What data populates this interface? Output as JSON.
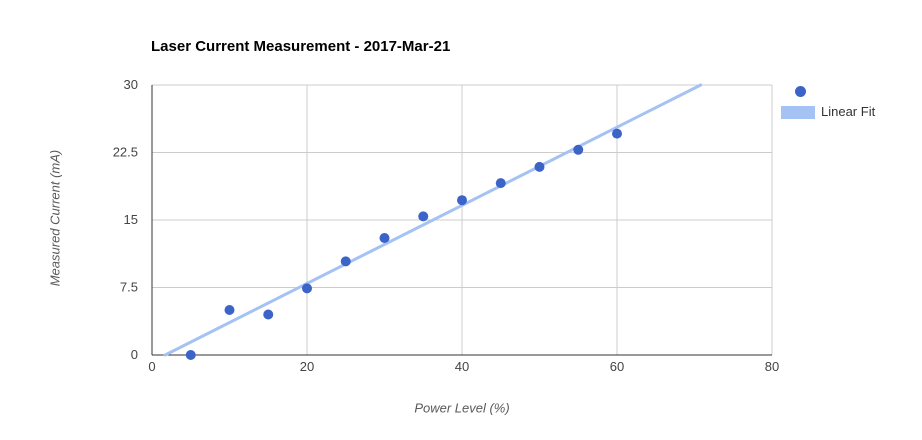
{
  "title": "Laser Current Measurement - 2017-Mar-21",
  "colors": {
    "background": "#ffffff",
    "point": "#3c64c8",
    "fit_line": "#a4c2f4",
    "grid": "#cccccc",
    "axis": "#333333",
    "tick_label": "#444444",
    "axis_title": "#5a5a5a",
    "title_text": "#000000",
    "legend_text": "#333333"
  },
  "legend": {
    "series_label": "",
    "fit_label": "Linear Fit"
  },
  "chart_data": {
    "type": "scatter",
    "title": "Laser Current Measurement - 2017-Mar-21",
    "xlabel": "Power Level (%)",
    "ylabel": "Measured Current (mA)",
    "xlim": [
      0,
      80
    ],
    "ylim": [
      0,
      30
    ],
    "x_ticks": [
      0,
      20,
      40,
      60,
      80
    ],
    "x_tick_labels": [
      "0",
      "20",
      "40",
      "60",
      "80"
    ],
    "y_ticks": [
      0,
      7.5,
      15,
      22.5,
      30
    ],
    "y_tick_labels": [
      "0",
      "7.5",
      "15",
      "22.5",
      "30"
    ],
    "grid": true,
    "legend_position": "right",
    "series": [
      {
        "name": "",
        "type": "scatter",
        "x": [
          5,
          10,
          15,
          20,
          25,
          30,
          35,
          40,
          45,
          50,
          55,
          60
        ],
        "y": [
          0,
          5.0,
          4.5,
          7.4,
          10.4,
          13.0,
          15.4,
          17.2,
          19.1,
          20.9,
          22.8,
          24.6
        ]
      },
      {
        "name": "Linear Fit",
        "type": "line",
        "x": [
          1.7,
          70.8
        ],
        "y": [
          0,
          30
        ]
      }
    ]
  }
}
